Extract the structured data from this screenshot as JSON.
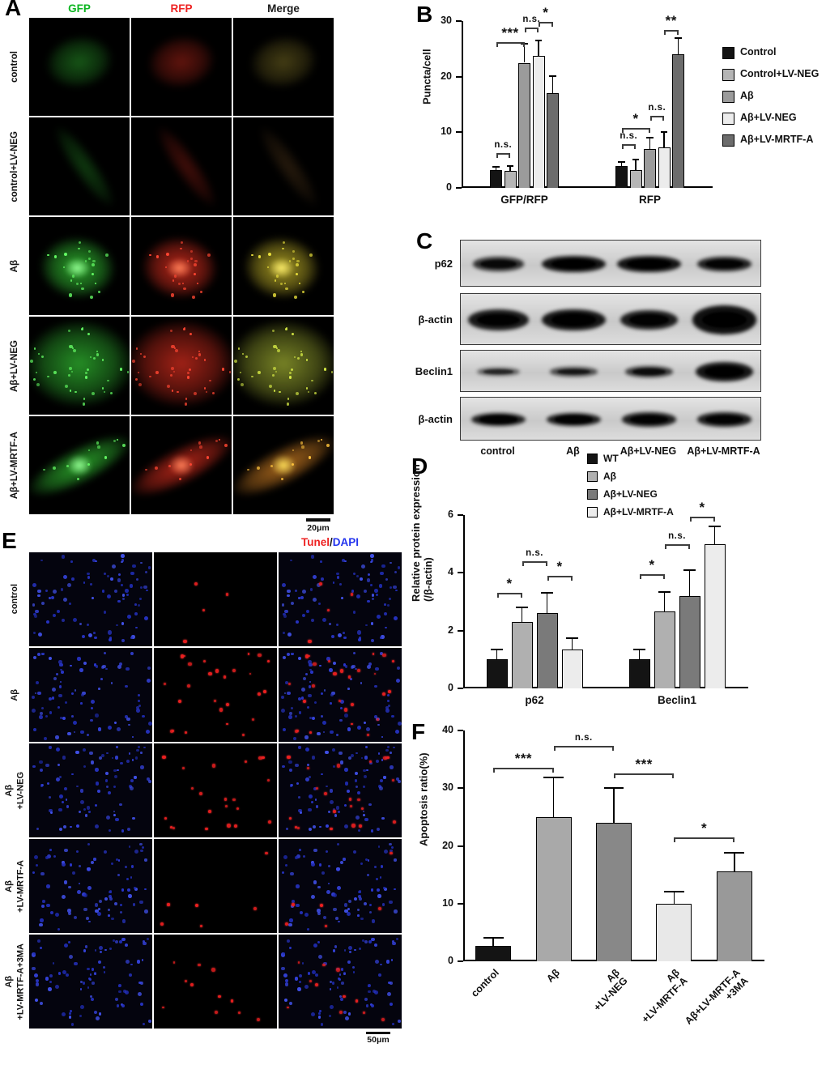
{
  "panels": {
    "A": {
      "label": "A",
      "columns": [
        "GFP",
        "RFP",
        "Merge"
      ],
      "column_colors": [
        "#0bb520",
        "#ee2222",
        "#1a1a1a"
      ],
      "rows": [
        "control",
        "control+LV-NEG",
        "Aβ",
        "Aβ+LV-NEG",
        "Aβ+LV-MRTF-A"
      ],
      "scale_bar": "20μm"
    },
    "B": {
      "label": "B"
    },
    "C": {
      "label": "C",
      "proteins": [
        "p62",
        "β-actin",
        "Beclin1",
        "β-actin"
      ],
      "lanes": [
        "control",
        "Aβ",
        "Aβ+LV-NEG",
        "Aβ+LV-MRTF-A"
      ]
    },
    "D": {
      "label": "D"
    },
    "E": {
      "label": "E",
      "title_parts": [
        {
          "text": "Tunel",
          "color": "#ee2222"
        },
        {
          "text": "/",
          "color": "#1a1a1a"
        },
        {
          "text": "DAPI",
          "color": "#2233ee"
        }
      ],
      "rows": [
        [
          "control"
        ],
        [
          "Aβ"
        ],
        [
          "Aβ",
          "+LV-NEG"
        ],
        [
          "Aβ",
          "+LV-MRTF-A"
        ],
        [
          "Aβ",
          "+LV-MRTF-A+3MA"
        ]
      ],
      "scale_bar": "50μm"
    },
    "F": {
      "label": "F"
    }
  },
  "chart_data": [
    {
      "id": "B",
      "type": "bar",
      "title": "",
      "ylabel": "Puncta/cell",
      "ylim": [
        0,
        30
      ],
      "yticks": [
        0,
        10,
        20,
        30
      ],
      "categories": [
        "GFP/RFP",
        "RFP"
      ],
      "series": [
        {
          "name": "Control",
          "color": "#141414",
          "values": [
            3.2,
            4.0
          ],
          "errors": [
            0.6,
            0.7
          ]
        },
        {
          "name": "Control+LV-NEG",
          "color": "#b5b5b5",
          "values": [
            3.1,
            3.2
          ],
          "errors": [
            0.9,
            1.9
          ]
        },
        {
          "name": "Aβ",
          "color": "#9b9b9b",
          "values": [
            22.5,
            7.0
          ],
          "errors": [
            3.4,
            2.0
          ]
        },
        {
          "name": "Aβ+LV-NEG",
          "color": "#ececec",
          "values": [
            23.8,
            7.3
          ],
          "errors": [
            2.7,
            2.7
          ]
        },
        {
          "name": "Aβ+LV-MRTF-A",
          "color": "#6c6c6c",
          "values": [
            17.0,
            24.0
          ],
          "errors": [
            3.1,
            3.0
          ]
        }
      ],
      "significance": [
        {
          "cat": 0,
          "a": 0,
          "b": 1,
          "label": "n.s.",
          "y": 6.2
        },
        {
          "cat": 0,
          "a": 0,
          "b": 2,
          "label": "***",
          "y": 26.2
        },
        {
          "cat": 0,
          "a": 2,
          "b": 3,
          "label": "n.s.",
          "y": 28.8
        },
        {
          "cat": 0,
          "a": 3,
          "b": 4,
          "label": "*",
          "y": 29.8
        },
        {
          "cat": 1,
          "a": 0,
          "b": 1,
          "label": "n.s.",
          "y": 7.8
        },
        {
          "cat": 1,
          "a": 0,
          "b": 2,
          "label": "*",
          "y": 10.8
        },
        {
          "cat": 1,
          "a": 2,
          "b": 3,
          "label": "n.s.",
          "y": 13.0
        },
        {
          "cat": 1,
          "a": 3,
          "b": 4,
          "label": "**",
          "y": 28.4
        }
      ],
      "legend_position": "right"
    },
    {
      "id": "D",
      "type": "bar",
      "title": "",
      "ylabel": [
        "Relative protein expression",
        "(/β-actin)"
      ],
      "ylim": [
        0,
        6
      ],
      "yticks": [
        0,
        2,
        4,
        6
      ],
      "categories": [
        "p62",
        "Beclin1"
      ],
      "series": [
        {
          "name": "WT",
          "color": "#141414",
          "values": [
            1.0,
            1.0
          ],
          "errors": [
            0.35,
            0.35
          ]
        },
        {
          "name": "Aβ",
          "color": "#b0b0b0",
          "values": [
            2.3,
            2.65
          ],
          "errors": [
            0.5,
            0.7
          ]
        },
        {
          "name": "Aβ+LV-NEG",
          "color": "#7a7a7a",
          "values": [
            2.6,
            3.2
          ],
          "errors": [
            0.7,
            0.9
          ]
        },
        {
          "name": "Aβ+LV-MRTF-A",
          "color": "#ececec",
          "values": [
            1.35,
            5.0
          ],
          "errors": [
            0.4,
            0.6
          ]
        }
      ],
      "significance": [
        {
          "cat": 0,
          "a": 0,
          "b": 1,
          "label": "*",
          "y": 3.3
        },
        {
          "cat": 0,
          "a": 1,
          "b": 2,
          "label": "n.s.",
          "y": 4.4
        },
        {
          "cat": 0,
          "a": 2,
          "b": 3,
          "label": "*",
          "y": 3.9
        },
        {
          "cat": 1,
          "a": 0,
          "b": 1,
          "label": "*",
          "y": 3.95
        },
        {
          "cat": 1,
          "a": 1,
          "b": 2,
          "label": "n.s.",
          "y": 5.0
        },
        {
          "cat": 1,
          "a": 2,
          "b": 3,
          "label": "*",
          "y": 5.95
        }
      ],
      "legend_position": "top"
    },
    {
      "id": "F",
      "type": "bar",
      "title": "",
      "ylabel": "Apoptosis ratio(%)",
      "ylim": [
        0,
        40
      ],
      "yticks": [
        0,
        10,
        20,
        30,
        40
      ],
      "categories": [
        "control",
        "Aβ",
        [
          "Aβ",
          "+LV-NEG"
        ],
        [
          "Aβ",
          "+LV-MRTF-A"
        ],
        [
          "Aβ+LV-MRTF-A",
          "+3MA"
        ]
      ],
      "series": [
        {
          "name": "Apoptosis ratio",
          "colors": [
            "#141414",
            "#a9a9a9",
            "#888888",
            "#e8e8e8",
            "#999999"
          ],
          "values": [
            2.6,
            25.0,
            24.0,
            9.9,
            15.6
          ],
          "errors": [
            1.5,
            6.8,
            6.0,
            2.2,
            3.2
          ]
        }
      ],
      "significance": [
        {
          "cat": -1,
          "a": 0,
          "b": 1,
          "label": "***",
          "y": 33.5
        },
        {
          "cat": -1,
          "a": 1,
          "b": 2,
          "label": "n.s.",
          "y": 37.3
        },
        {
          "cat": -1,
          "a": 2,
          "b": 3,
          "label": "***",
          "y": 32.5
        },
        {
          "cat": -1,
          "a": 3,
          "b": 4,
          "label": "*",
          "y": 21.5
        }
      ],
      "legend_position": "none"
    }
  ]
}
